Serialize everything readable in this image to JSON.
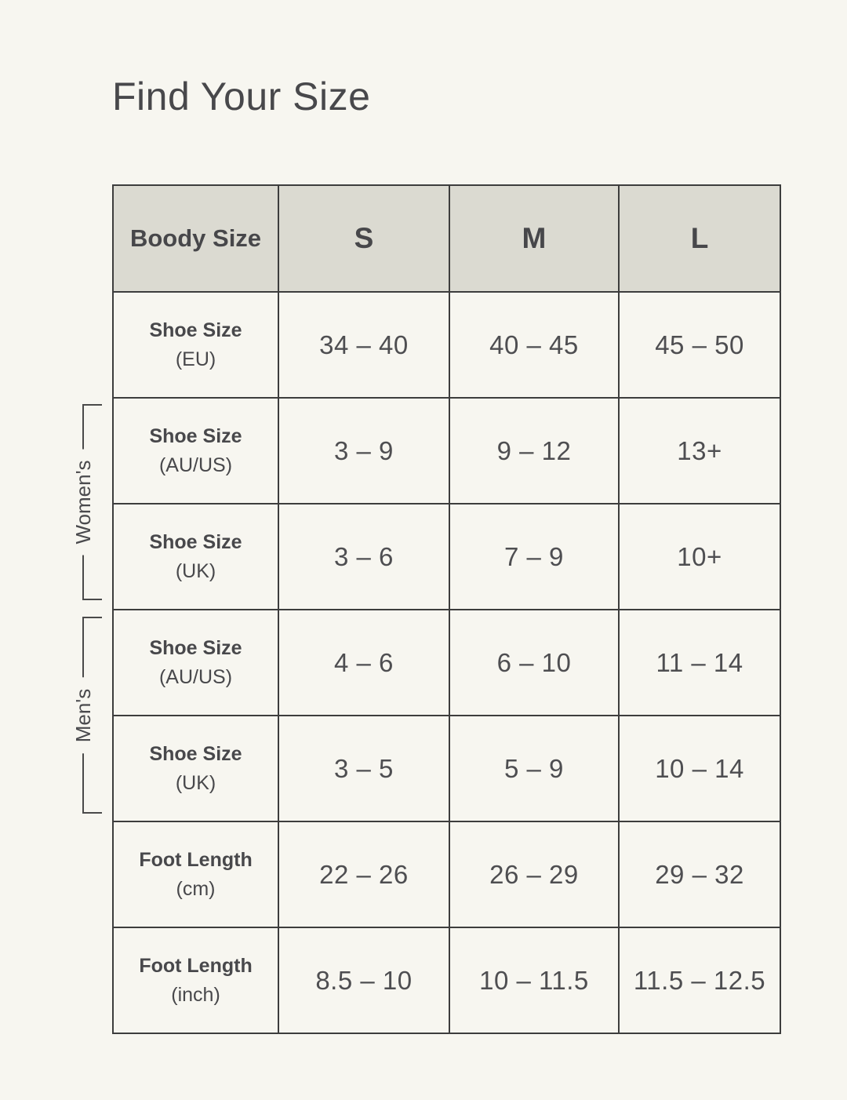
{
  "title": "Find Your Size",
  "colors": {
    "page_background": "#f7f6f0",
    "header_background": "#dbdad1",
    "table_border": "#3d3d3d",
    "text": "#4a4a4c"
  },
  "table": {
    "header": [
      "Boody Size",
      "S",
      "M",
      "L"
    ],
    "rows": [
      {
        "label": "Shoe Size",
        "sub": "(EU)",
        "values": [
          "34 – 40",
          "40 – 45",
          "45 – 50"
        ]
      },
      {
        "label": "Shoe Size",
        "sub": "(AU/US)",
        "values": [
          "3 – 9",
          "9 – 12",
          "13+"
        ]
      },
      {
        "label": "Shoe Size",
        "sub": "(UK)",
        "values": [
          "3 – 6",
          "7 – 9",
          "10+"
        ]
      },
      {
        "label": "Shoe Size",
        "sub": "(AU/US)",
        "values": [
          "4 – 6",
          "6 – 10",
          "11 – 14"
        ]
      },
      {
        "label": "Shoe Size",
        "sub": "(UK)",
        "values": [
          "3 – 5",
          "5 – 9",
          "10 – 14"
        ]
      },
      {
        "label": "Foot Length",
        "sub": "(cm)",
        "values": [
          "22 – 26",
          "26 – 29",
          "29 – 32"
        ]
      },
      {
        "label": "Foot Length",
        "sub": "(inch)",
        "values": [
          "8.5 – 10",
          "10 – 11.5",
          "11.5 – 12.5"
        ]
      }
    ]
  },
  "brackets": [
    {
      "label": "Women's"
    },
    {
      "label": "Men's"
    }
  ],
  "chart_data": {
    "type": "table",
    "title": "Find Your Size",
    "columns": [
      "Boody Size",
      "S",
      "M",
      "L"
    ],
    "rows": [
      [
        "Shoe Size (EU)",
        "34 – 40",
        "40 – 45",
        "45 – 50"
      ],
      [
        "Shoe Size (AU/US)",
        "3 – 9",
        "9 – 12",
        "13+"
      ],
      [
        "Shoe Size (UK)",
        "3 – 6",
        "7 – 9",
        "10+"
      ],
      [
        "Shoe Size (AU/US)",
        "4 – 6",
        "6 – 10",
        "11 – 14"
      ],
      [
        "Shoe Size (UK)",
        "3 – 5",
        "5 – 9",
        "10 – 14"
      ],
      [
        "Foot Length (cm)",
        "22 – 26",
        "26 – 29",
        "29 – 32"
      ],
      [
        "Foot Length (inch)",
        "8.5 – 10",
        "10 – 11.5",
        "11.5 – 12.5"
      ]
    ],
    "row_groups": [
      {
        "label": "Women's",
        "row_indexes": [
          1,
          2
        ]
      },
      {
        "label": "Men's",
        "row_indexes": [
          3,
          4
        ]
      }
    ]
  }
}
